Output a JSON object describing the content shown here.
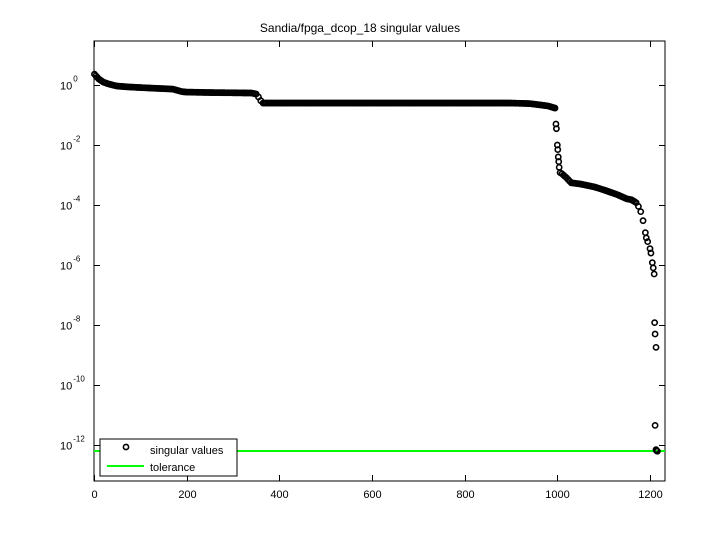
{
  "chart_data": {
    "type": "scatter",
    "title": "Sandia/fpga_dcop_18 singular values",
    "xlabel": "",
    "ylabel": "",
    "xscale": "linear",
    "yscale": "log",
    "xlim": [
      0,
      1232
    ],
    "ylim": [
      6.3e-14,
      30
    ],
    "x_ticks": [
      0,
      200,
      400,
      600,
      800,
      1000,
      1200
    ],
    "x_tick_labels": [
      "0",
      "200",
      "400",
      "600",
      "800",
      "1000",
      "1200"
    ],
    "y_ticks_exponents": [
      0,
      -2,
      -4,
      -6,
      -8,
      -10,
      -12
    ],
    "y_tick_labels": [
      "10^0",
      "10^-2",
      "10^-4",
      "10^-6",
      "10^-8",
      "10^-10",
      "10^-12"
    ],
    "grid": false,
    "legend_position": "lower left",
    "legend": [
      "singular values",
      "tolerance"
    ],
    "series": [
      {
        "name": "singular values",
        "marker": "open circle",
        "color": "#000000",
        "points": [
          [
            1,
            2.3
          ],
          [
            10,
            1.6
          ],
          [
            20,
            1.25
          ],
          [
            30,
            1.1
          ],
          [
            40,
            1.0
          ],
          [
            50,
            0.92
          ],
          [
            70,
            0.87
          ],
          [
            100,
            0.82
          ],
          [
            130,
            0.78
          ],
          [
            170,
            0.73
          ],
          [
            190,
            0.6
          ],
          [
            200,
            0.58
          ],
          [
            250,
            0.56
          ],
          [
            300,
            0.55
          ],
          [
            340,
            0.54
          ],
          [
            350,
            0.5
          ],
          [
            355,
            0.4
          ],
          [
            360,
            0.3
          ],
          [
            365,
            0.25
          ],
          [
            400,
            0.25
          ],
          [
            500,
            0.25
          ],
          [
            600,
            0.25
          ],
          [
            700,
            0.25
          ],
          [
            800,
            0.25
          ],
          [
            900,
            0.25
          ],
          [
            940,
            0.24
          ],
          [
            960,
            0.22
          ],
          [
            980,
            0.2
          ],
          [
            995,
            0.17
          ],
          [
            997,
            0.05
          ],
          [
            998,
            0.035
          ],
          [
            1000,
            0.01
          ],
          [
            1001,
            0.007
          ],
          [
            1002,
            0.004
          ],
          [
            1003,
            0.0028
          ],
          [
            1004,
            0.0018
          ],
          [
            1006,
            0.0012
          ],
          [
            1010,
            0.0011
          ],
          [
            1020,
            0.0008
          ],
          [
            1030,
            0.00055
          ],
          [
            1050,
            0.0005
          ],
          [
            1080,
            0.0004
          ],
          [
            1100,
            0.00032
          ],
          [
            1130,
            0.00022
          ],
          [
            1150,
            0.00016
          ],
          [
            1160,
            0.00015
          ],
          [
            1170,
            0.00012
          ],
          [
            1175,
            9e-05
          ],
          [
            1180,
            6e-05
          ],
          [
            1185,
            3e-05
          ],
          [
            1190,
            1.2e-05
          ],
          [
            1192,
            8e-06
          ],
          [
            1195,
            6e-06
          ],
          [
            1200,
            3.5e-06
          ],
          [
            1202,
            2.5e-06
          ],
          [
            1205,
            1.2e-06
          ],
          [
            1207,
            8e-07
          ],
          [
            1209,
            5e-07
          ],
          [
            1210,
            1.2e-08
          ],
          [
            1211,
            5e-09
          ],
          [
            1213,
            1.8e-09
          ],
          [
            1211,
            4.5e-12
          ],
          [
            1213,
            7e-13
          ],
          [
            1214,
            6.5e-13
          ],
          [
            1215,
            6.3e-13
          ],
          [
            1216,
            6.2e-13
          ]
        ]
      },
      {
        "name": "tolerance",
        "type": "line",
        "color": "#00ff00",
        "y_value": 6.3e-13
      }
    ]
  },
  "plot": {
    "title": "Sandia/fpga_dcop_18 singular values",
    "legend": {
      "items": [
        {
          "label": "singular values",
          "marker": "circle-marker"
        },
        {
          "label": "tolerance",
          "marker": "green-line"
        }
      ]
    },
    "x_tick_labels": [
      "0",
      "200",
      "400",
      "600",
      "800",
      "1000",
      "1200"
    ],
    "y_tick_base": "10",
    "y_tick_exponents": [
      "0",
      "-2",
      "-4",
      "-6",
      "-8",
      "-10",
      "-12"
    ],
    "colors": {
      "tolerance": "#00ff00",
      "points": "#000000",
      "axes": "#000000"
    }
  }
}
